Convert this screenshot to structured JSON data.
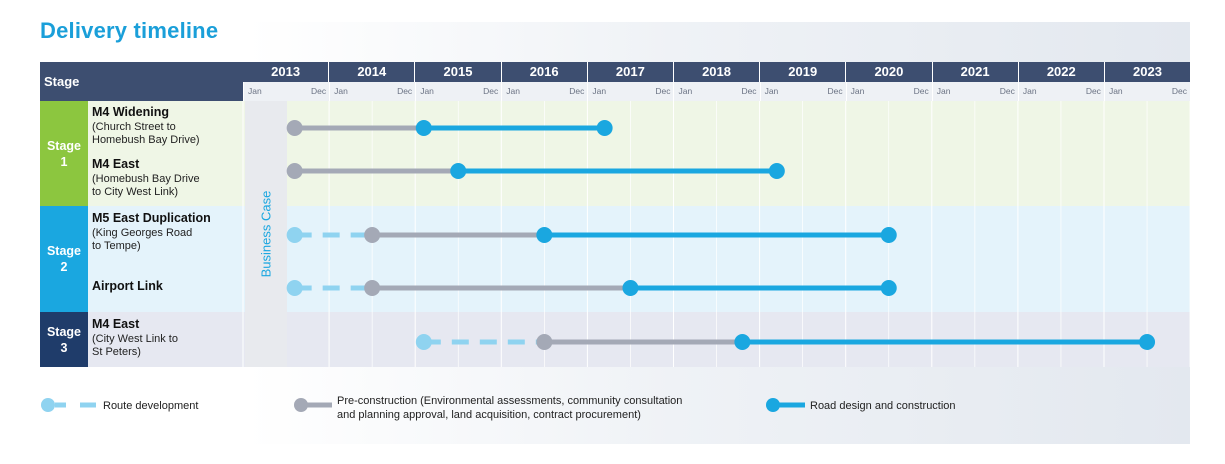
{
  "title": "Delivery timeline",
  "header": {
    "stage_label": "Stage"
  },
  "years": [
    "2013",
    "2014",
    "2015",
    "2016",
    "2017",
    "2018",
    "2019",
    "2020",
    "2021",
    "2022",
    "2023"
  ],
  "month_labels": {
    "start": "Jan",
    "end": "Dec"
  },
  "business_case_label": "Business Case",
  "stages": [
    {
      "label_line1": "Stage",
      "label_line2": "1"
    },
    {
      "label_line1": "Stage",
      "label_line2": "2"
    },
    {
      "label_line1": "Stage",
      "label_line2": "3"
    }
  ],
  "projects": [
    {
      "name": "M4 Widening",
      "detail": [
        "(Church Street to",
        "Homebush Bay Drive)"
      ]
    },
    {
      "name": "M4 East",
      "detail": [
        "(Homebush Bay Drive",
        "to City West Link)"
      ]
    },
    {
      "name": "M5 East Duplication",
      "detail": [
        "(King Georges Road",
        "to Tempe)"
      ]
    },
    {
      "name": "Airport Link",
      "detail": []
    },
    {
      "name": "M4 East",
      "detail": [
        "(City West Link to",
        "St Peters)"
      ]
    }
  ],
  "legend": {
    "route": "Route development",
    "pre_line1": "Pre-construction (Environmental assessments, community consultation",
    "pre_line2": "and planning approval, land acquisition, contract procurement)",
    "road": "Road design and construction"
  },
  "colors": {
    "route": "#8fd3f0",
    "pre": "#a4a9b6",
    "road": "#1aa7e0"
  },
  "chart_data": {
    "type": "gantt",
    "title": "Delivery timeline",
    "x_unit": "year",
    "xlim": [
      2013.0,
      2024.0
    ],
    "business_case": [
      2013.0,
      2013.5
    ],
    "phases": [
      "Route development",
      "Pre-construction",
      "Road design and construction"
    ],
    "tasks": [
      {
        "stage": "Stage 1",
        "project": "M4 Widening",
        "route": null,
        "pre": [
          2013.6,
          2015.1
        ],
        "road": [
          2015.1,
          2017.2
        ]
      },
      {
        "stage": "Stage 1",
        "project": "M4 East (Homebush Bay Drive to City West Link)",
        "route": null,
        "pre": [
          2013.6,
          2015.5
        ],
        "road": [
          2015.5,
          2019.2
        ]
      },
      {
        "stage": "Stage 2",
        "project": "M5 East Duplication",
        "route": [
          2013.6,
          2014.5
        ],
        "pre": [
          2014.5,
          2016.5
        ],
        "road": [
          2016.5,
          2020.5
        ]
      },
      {
        "stage": "Stage 2",
        "project": "Airport Link",
        "route": [
          2013.6,
          2014.5
        ],
        "pre": [
          2014.5,
          2017.5
        ],
        "road": [
          2017.5,
          2020.5
        ]
      },
      {
        "stage": "Stage 3",
        "project": "M4 East (City West Link to St Peters)",
        "route": [
          2015.1,
          2016.5
        ],
        "pre": [
          2016.5,
          2018.8
        ],
        "road": [
          2018.8,
          2023.5
        ]
      }
    ]
  }
}
